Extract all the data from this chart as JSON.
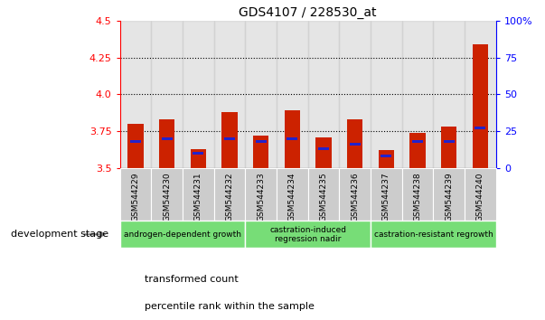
{
  "title": "GDS4107 / 228530_at",
  "samples": [
    "GSM544229",
    "GSM544230",
    "GSM544231",
    "GSM544232",
    "GSM544233",
    "GSM544234",
    "GSM544235",
    "GSM544236",
    "GSM544237",
    "GSM544238",
    "GSM544239",
    "GSM544240"
  ],
  "transformed_count": [
    3.8,
    3.83,
    3.63,
    3.88,
    3.72,
    3.89,
    3.71,
    3.83,
    3.62,
    3.74,
    3.78,
    4.34
  ],
  "percentile_rank": [
    18,
    20,
    10,
    20,
    18,
    20,
    13,
    16,
    8,
    18,
    18,
    27
  ],
  "ylim_left": [
    3.5,
    4.5
  ],
  "ylim_right": [
    0,
    100
  ],
  "yticks_left": [
    3.5,
    3.75,
    4.0,
    4.25,
    4.5
  ],
  "yticks_right": [
    0,
    25,
    50,
    75,
    100
  ],
  "grid_lines": [
    3.75,
    4.0,
    4.25
  ],
  "bar_color": "#cc2200",
  "percentile_color": "#2222cc",
  "base": 3.5,
  "bar_width": 0.5,
  "groups": [
    {
      "label": "androgen-dependent growth",
      "start": 0,
      "end": 3
    },
    {
      "label": "castration-induced\nregression nadir",
      "start": 4,
      "end": 7
    },
    {
      "label": "castration-resistant regrowth",
      "start": 8,
      "end": 11
    }
  ],
  "group_color": "#77dd77",
  "group_edge_color": "#ffffff",
  "legend_items": [
    {
      "label": "transformed count",
      "color": "#cc2200"
    },
    {
      "label": "percentile rank within the sample",
      "color": "#2222cc"
    }
  ],
  "stage_label": "development stage",
  "xlabels_bg": "#cccccc",
  "plot_bg": "#ffffff",
  "spine_color": "#000000"
}
